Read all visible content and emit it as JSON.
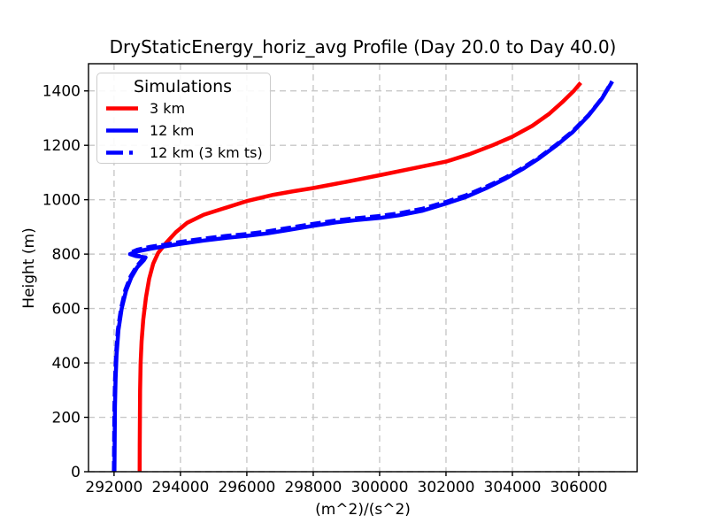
{
  "chart_data": {
    "type": "line",
    "title": "DryStaticEnergy_horiz_avg Profile (Day 20.0 to Day 40.0)",
    "xlabel": "(m^2)/(s^2)",
    "ylabel": "Height (m)",
    "xlim": [
      291230,
      307760
    ],
    "ylim": [
      0,
      1500
    ],
    "xticks": [
      292000,
      294000,
      296000,
      298000,
      300000,
      302000,
      304000,
      306000
    ],
    "yticks": [
      0,
      200,
      400,
      600,
      800,
      1000,
      1200,
      1400
    ],
    "grid": true,
    "legend": {
      "title": "Simulations",
      "position": "upper left"
    },
    "colors": {
      "series_red": "#ff0000",
      "series_blue": "#0000ff",
      "grid": "#c8c8c8",
      "axis": "#000000",
      "legend_border": "#cccccc"
    },
    "series": [
      {
        "name": "3 km",
        "color": "#ff0000",
        "style": "solid",
        "points": [
          [
            292770,
            0
          ],
          [
            292773,
            100
          ],
          [
            292778,
            200
          ],
          [
            292785,
            300
          ],
          [
            292800,
            400
          ],
          [
            292830,
            480
          ],
          [
            292880,
            560
          ],
          [
            292960,
            640
          ],
          [
            293060,
            710
          ],
          [
            293180,
            765
          ],
          [
            293330,
            805
          ],
          [
            293560,
            840
          ],
          [
            293860,
            880
          ],
          [
            294200,
            915
          ],
          [
            294700,
            945
          ],
          [
            295300,
            968
          ],
          [
            296030,
            996
          ],
          [
            296800,
            1018
          ],
          [
            297400,
            1031
          ],
          [
            298000,
            1043
          ],
          [
            299000,
            1066
          ],
          [
            300000,
            1090
          ],
          [
            301000,
            1115
          ],
          [
            302000,
            1140
          ],
          [
            302700,
            1167
          ],
          [
            303400,
            1200
          ],
          [
            304000,
            1232
          ],
          [
            304600,
            1272
          ],
          [
            305100,
            1315
          ],
          [
            305500,
            1358
          ],
          [
            305850,
            1400
          ],
          [
            306060,
            1430
          ]
        ]
      },
      {
        "name": "12 km",
        "color": "#0000ff",
        "style": "solid",
        "points": [
          [
            292010,
            0
          ],
          [
            292018,
            120
          ],
          [
            292028,
            240
          ],
          [
            292045,
            340
          ],
          [
            292075,
            430
          ],
          [
            292130,
            520
          ],
          [
            292230,
            600
          ],
          [
            292360,
            665
          ],
          [
            292520,
            715
          ],
          [
            292700,
            752
          ],
          [
            292900,
            778
          ],
          [
            292950,
            788
          ],
          [
            292650,
            793
          ],
          [
            292480,
            800
          ],
          [
            292700,
            810
          ],
          [
            293100,
            820
          ],
          [
            293600,
            830
          ],
          [
            294000,
            838
          ],
          [
            294700,
            850
          ],
          [
            295400,
            860
          ],
          [
            296000,
            867
          ],
          [
            296600,
            876
          ],
          [
            297200,
            888
          ],
          [
            298000,
            904
          ],
          [
            298700,
            917
          ],
          [
            299300,
            925
          ],
          [
            300000,
            933
          ],
          [
            300600,
            943
          ],
          [
            301300,
            960
          ],
          [
            302000,
            986
          ],
          [
            302600,
            1010
          ],
          [
            303200,
            1042
          ],
          [
            303800,
            1078
          ],
          [
            304300,
            1112
          ],
          [
            304800,
            1152
          ],
          [
            305300,
            1197
          ],
          [
            305800,
            1247
          ],
          [
            306300,
            1310
          ],
          [
            306700,
            1372
          ],
          [
            307010,
            1435
          ]
        ]
      },
      {
        "name": "12 km (3 km ts)",
        "color": "#0000ff",
        "style": "dashed",
        "points": [
          [
            291995,
            0
          ],
          [
            292003,
            120
          ],
          [
            292012,
            240
          ],
          [
            292030,
            340
          ],
          [
            292058,
            430
          ],
          [
            292112,
            520
          ],
          [
            292210,
            600
          ],
          [
            292340,
            668
          ],
          [
            292500,
            718
          ],
          [
            292680,
            755
          ],
          [
            292870,
            782
          ],
          [
            292920,
            790
          ],
          [
            292620,
            796
          ],
          [
            292450,
            803
          ],
          [
            292700,
            816
          ],
          [
            293100,
            827
          ],
          [
            293600,
            836
          ],
          [
            294000,
            845
          ],
          [
            294700,
            857
          ],
          [
            295400,
            867
          ],
          [
            296000,
            874
          ],
          [
            296600,
            883
          ],
          [
            297200,
            895
          ],
          [
            298000,
            911
          ],
          [
            298700,
            924
          ],
          [
            299300,
            932
          ],
          [
            300000,
            940
          ],
          [
            300600,
            950
          ],
          [
            301300,
            967
          ],
          [
            302000,
            992
          ],
          [
            302600,
            1016
          ],
          [
            303200,
            1047
          ],
          [
            303800,
            1082
          ],
          [
            304300,
            1116
          ],
          [
            304800,
            1155
          ],
          [
            305300,
            1200
          ],
          [
            305800,
            1250
          ],
          [
            306300,
            1312
          ],
          [
            306700,
            1373
          ],
          [
            307000,
            1435
          ]
        ]
      }
    ]
  }
}
